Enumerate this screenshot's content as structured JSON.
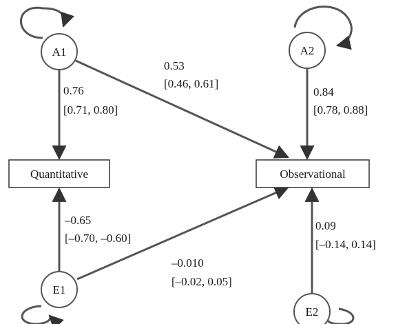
{
  "nodes": {
    "a1": {
      "label": "A1"
    },
    "a2": {
      "label": "A2"
    },
    "e1": {
      "label": "E1"
    },
    "e2": {
      "label": "E2"
    },
    "quantitative": {
      "label": "Quantitative"
    },
    "observational": {
      "label": "Observational"
    }
  },
  "paths": {
    "a1_quantitative": {
      "estimate": "0.76",
      "ci": "[0.71, 0.80]"
    },
    "a1_observational": {
      "estimate": "0.53",
      "ci": "[0.46, 0.61]"
    },
    "a2_observational": {
      "estimate": "0.84",
      "ci": "[0.78, 0.88]"
    },
    "e1_quantitative": {
      "estimate": "–0.65",
      "ci": "[–0.70, –0.60]"
    },
    "e1_observational": {
      "estimate": "–0.010",
      "ci": "[–0.02, 0.05]"
    },
    "e2_observational": {
      "estimate": "0.09",
      "ci": "[–0.14, 0.14]"
    }
  },
  "colors": {
    "line": "#555555",
    "stroke": "#333333"
  }
}
